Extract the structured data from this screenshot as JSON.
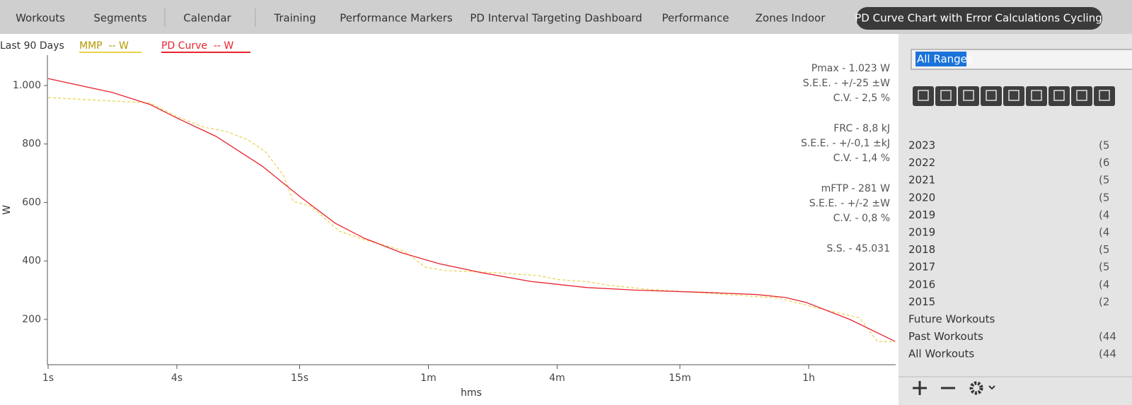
{
  "tabs": {
    "items": [
      "Workouts",
      "Segments",
      "Calendar",
      "Training",
      "Performance Markers",
      "PD Interval Targeting Dashboard",
      "Performance",
      "Zones Indoor",
      "PD Curve Chart with Error Calculations Cycling"
    ],
    "active": 8
  },
  "chart_data": {
    "type": "line",
    "title": "Last 90 Days",
    "xlabel": "hms",
    "ylabel": "W",
    "xlog": true,
    "xlim": [
      1,
      9120
    ],
    "ylim": [
      45,
      1104
    ],
    "xticks": [
      {
        "value": 1,
        "label": "1s"
      },
      {
        "value": 4,
        "label": "4s"
      },
      {
        "value": 15,
        "label": "15s"
      },
      {
        "value": 60,
        "label": "1m"
      },
      {
        "value": 240,
        "label": "4m"
      },
      {
        "value": 900,
        "label": "15m"
      },
      {
        "value": 3600,
        "label": "1h"
      }
    ],
    "yticks": [
      {
        "value": 1000,
        "label": "1.000"
      },
      800,
      600,
      400,
      200
    ],
    "series": [
      {
        "name": "MMP  -- W",
        "color": "#e6d24a",
        "dashed": true,
        "x": [
          1,
          2,
          3,
          4,
          5.4,
          6.8,
          8.6,
          10.4,
          12.6,
          14,
          17,
          23,
          30,
          46,
          58,
          72,
          123,
          195,
          245,
          330,
          417,
          658,
          1210,
          2590,
          3800,
          4770,
          6230,
          7530,
          9120
        ],
        "values": [
          959,
          947,
          940,
          894,
          857,
          843,
          814,
          773,
          693,
          604,
          587,
          502,
          473,
          435,
          379,
          367,
          360,
          350,
          336,
          329,
          317,
          302,
          290,
          273,
          242,
          225,
          205,
          125,
          123
        ]
      },
      {
        "name": "PD Curve  -- W",
        "color": "#e8232f",
        "dashed": false,
        "x": [
          1,
          2,
          3,
          4,
          6.1,
          10,
          15,
          22,
          30,
          45,
          67,
          106,
          180,
          330,
          560,
          1210,
          2050,
          2800,
          3500,
          5600,
          9120
        ],
        "values": [
          1024,
          976,
          935,
          889,
          826,
          725,
          621,
          529,
          478,
          428,
          391,
          360,
          330,
          309,
          300,
          292,
          285,
          275,
          258,
          200,
          125
        ]
      }
    ],
    "annotations": [
      "Pmax - 1.023 W",
      "S.E.E. - +/-25 ±W",
      "C.V. - 2,5 %",
      "FRC - 8,8 kJ",
      "S.E.E. - +/-0,1 ±kJ",
      "C.V. - 1,4 %",
      "mFTP - 281 W",
      "S.E.E. - +/-2 ±W",
      "C.V. - 0,8 %",
      "S.S. - 45.031"
    ]
  },
  "sidebar": {
    "range": "All Ranges",
    "items": [
      {
        "label": "2023",
        "count": "(5"
      },
      {
        "label": "2022",
        "count": "(6"
      },
      {
        "label": "2021",
        "count": "(5"
      },
      {
        "label": "2020",
        "count": "(5"
      },
      {
        "label": "2019",
        "count": "(4"
      },
      {
        "label": "2019",
        "count": "(4"
      },
      {
        "label": "2018",
        "count": "(5"
      },
      {
        "label": "2017",
        "count": "(5"
      },
      {
        "label": "2016",
        "count": "(4"
      },
      {
        "label": "2015",
        "count": "(2"
      },
      {
        "label": "Future Workouts"
      },
      {
        "label": "Past Workouts",
        "count": "(44"
      },
      {
        "label": "All Workouts",
        "count": "(44"
      }
    ]
  }
}
